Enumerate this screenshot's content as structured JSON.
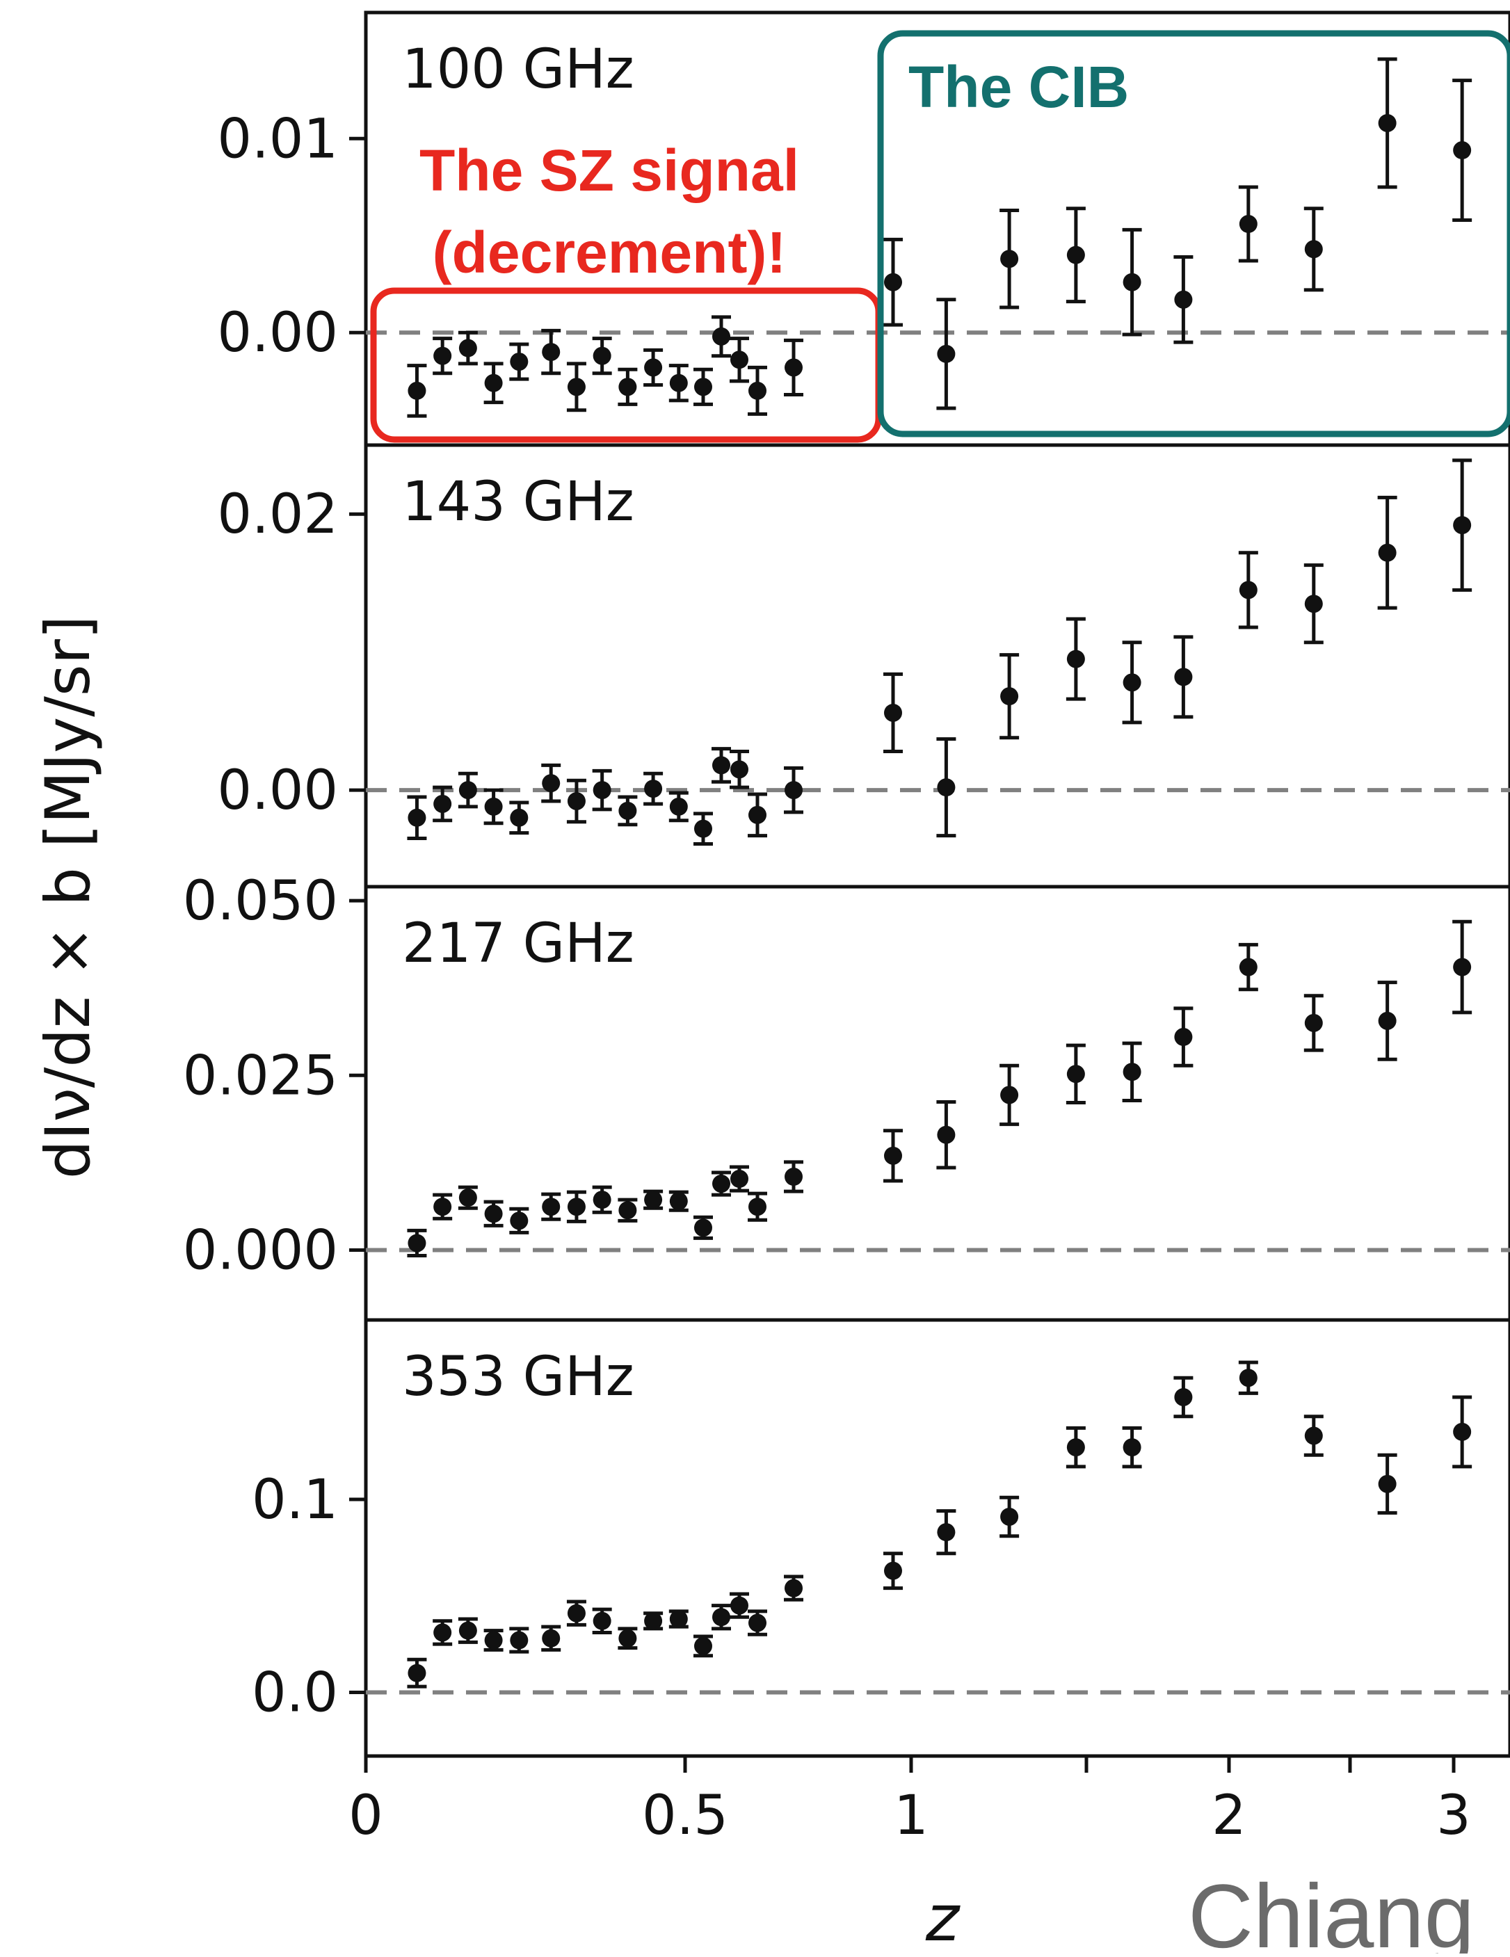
{
  "chart_data": {
    "type": "scatter",
    "x_scale": "custom (linear in z for z<1, compressed for z>1)",
    "xlabel": "z",
    "x_ticks": [
      0,
      0.5,
      1,
      2,
      3
    ],
    "x_tick_labels": [
      "0",
      "0.5",
      "1",
      "2",
      "3"
    ],
    "x_minor_ticks": [
      1.5,
      2.5
    ],
    "ylabel": "dIν/dz × b  [MJy/sr]",
    "shared_x": [
      0.08,
      0.12,
      0.16,
      0.2,
      0.24,
      0.29,
      0.33,
      0.37,
      0.41,
      0.45,
      0.49,
      0.54,
      0.58,
      0.62,
      0.66,
      0.74,
      0.96,
      1.1,
      1.28,
      1.47,
      1.66,
      1.84,
      2.08,
      2.35,
      2.68,
      3.03
    ],
    "reference_line": {
      "y": 0,
      "style": "dashed",
      "color": "#808080"
    },
    "panels": [
      {
        "label": "100 GHz",
        "ylim": [
          -0.0058,
          0.0165
        ],
        "y_ticks": [
          0.0,
          0.01
        ],
        "y_tick_labels": [
          "0.00",
          "0.01"
        ],
        "y": [
          -0.003,
          -0.0012,
          -0.0008,
          -0.0026,
          -0.0015,
          -0.001,
          -0.0028,
          -0.0012,
          -0.0028,
          -0.0018,
          -0.0026,
          -0.0028,
          -0.0002,
          -0.0014,
          -0.003,
          -0.0018,
          0.0026,
          -0.0011,
          0.0038,
          0.004,
          0.0026,
          0.0017,
          0.0056,
          0.0043,
          0.0108,
          0.0094
        ],
        "yerr": [
          0.0013,
          0.0009,
          0.0008,
          0.001,
          0.0009,
          0.0011,
          0.0012,
          0.0009,
          0.0009,
          0.0009,
          0.0009,
          0.0009,
          0.001,
          0.0011,
          0.0012,
          0.0014,
          0.0022,
          0.0028,
          0.0025,
          0.0024,
          0.0027,
          0.0022,
          0.0019,
          0.0021,
          0.0033,
          0.0036
        ]
      },
      {
        "label": "143 GHz",
        "ylim": [
          -0.007,
          0.025
        ],
        "y_ticks": [
          0.0,
          0.02
        ],
        "y_tick_labels": [
          "0.00",
          "0.02"
        ],
        "y": [
          -0.002,
          -0.001,
          0.0,
          -0.0012,
          -0.002,
          0.0005,
          -0.0008,
          0.0,
          -0.0015,
          0.0001,
          -0.0012,
          -0.0028,
          0.0018,
          0.0015,
          -0.0018,
          0.0,
          0.0056,
          0.0002,
          0.0068,
          0.0095,
          0.0078,
          0.0082,
          0.0145,
          0.0135,
          0.0172,
          0.0192
        ],
        "yerr": [
          0.0015,
          0.0012,
          0.0012,
          0.0012,
          0.0011,
          0.0013,
          0.0015,
          0.0014,
          0.001,
          0.0011,
          0.001,
          0.0011,
          0.0012,
          0.0013,
          0.0015,
          0.0016,
          0.0028,
          0.0035,
          0.003,
          0.0029,
          0.0029,
          0.0029,
          0.0027,
          0.0028,
          0.004,
          0.0047
        ]
      },
      {
        "label": "217 GHz",
        "ylim": [
          -0.01,
          0.052
        ],
        "y_ticks": [
          0.0,
          0.025,
          0.05
        ],
        "y_tick_labels": [
          "0.000",
          "0.025",
          "0.050"
        ],
        "y": [
          0.001,
          0.0062,
          0.0075,
          0.0052,
          0.0042,
          0.0062,
          0.0062,
          0.0072,
          0.0057,
          0.0072,
          0.007,
          0.0032,
          0.0095,
          0.0102,
          0.0062,
          0.0105,
          0.0135,
          0.0165,
          0.0222,
          0.0252,
          0.0255,
          0.0305,
          0.0405,
          0.0325,
          0.0328,
          0.0405
        ],
        "yerr": [
          0.0018,
          0.0017,
          0.0015,
          0.0017,
          0.0017,
          0.0018,
          0.0021,
          0.0018,
          0.0015,
          0.0012,
          0.0013,
          0.0015,
          0.0016,
          0.0017,
          0.0019,
          0.0021,
          0.0036,
          0.0047,
          0.0042,
          0.0041,
          0.0041,
          0.0041,
          0.0032,
          0.0039,
          0.0055,
          0.0065
        ]
      },
      {
        "label": "353 GHz",
        "ylim": [
          -0.033,
          0.193
        ],
        "y_ticks": [
          0.0,
          0.1
        ],
        "y_tick_labels": [
          "0.0",
          "0.1"
        ],
        "y": [
          0.01,
          0.031,
          0.032,
          0.027,
          0.027,
          0.028,
          0.041,
          0.037,
          0.028,
          0.037,
          0.038,
          0.024,
          0.039,
          0.045,
          0.036,
          0.054,
          0.063,
          0.083,
          0.091,
          0.127,
          0.127,
          0.153,
          0.163,
          0.133,
          0.108,
          0.135
        ],
        "yerr": [
          0.007,
          0.006,
          0.006,
          0.005,
          0.006,
          0.006,
          0.006,
          0.006,
          0.005,
          0.004,
          0.004,
          0.005,
          0.006,
          0.006,
          0.006,
          0.006,
          0.009,
          0.011,
          0.01,
          0.01,
          0.01,
          0.01,
          0.008,
          0.01,
          0.015,
          0.018
        ]
      }
    ],
    "annotations": {
      "sz_line1": "The SZ signal",
      "sz_line2": "(decrement)!",
      "cib": "The CIB",
      "credit": "Chiang"
    }
  },
  "colors": {
    "sz": "#e8281f",
    "cib": "#13706e",
    "points": "#111111",
    "dashed_line": "#808080",
    "credit": "#6b6b6b"
  }
}
